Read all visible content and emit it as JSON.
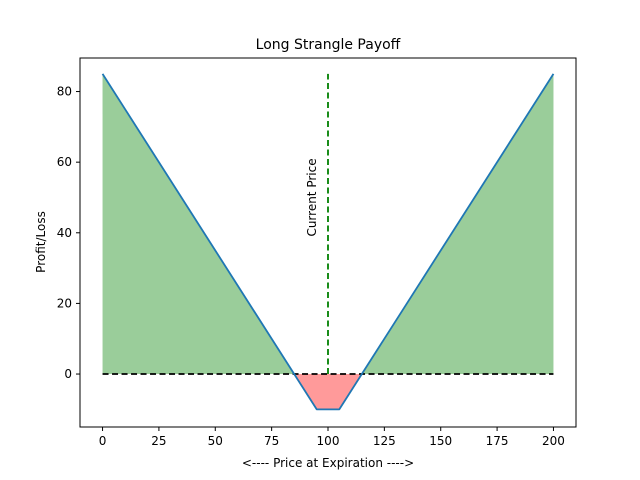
{
  "chart_data": {
    "type": "line",
    "title": "Long Strangle Payoff",
    "xlabel": "<---- Price at Expiration ---->",
    "ylabel": "Profit/Loss",
    "xlim": [
      -10,
      210
    ],
    "ylim": [
      -15,
      89.5
    ],
    "xticks": [
      0,
      25,
      50,
      75,
      100,
      125,
      150,
      175,
      200
    ],
    "yticks": [
      0,
      20,
      40,
      60,
      80
    ],
    "grid": false,
    "series": [
      {
        "name": "",
        "color": "#1f77b4",
        "x": [
          0,
          95,
          105,
          200
        ],
        "y": [
          85,
          -10,
          -10,
          85
        ]
      }
    ],
    "fills": {
      "profit_color": "#9acd9a",
      "loss_color": "#ff9a9a"
    },
    "breakeven_line": {
      "y": 0,
      "x_start": 0,
      "x_end": 200,
      "color": "#000000",
      "style": "dashed"
    },
    "current_price_line": {
      "x": 100,
      "y_start": 0,
      "y_end": 85,
      "color": "#008000",
      "style": "dashed",
      "label": "Current Price",
      "label_y": 50
    }
  }
}
